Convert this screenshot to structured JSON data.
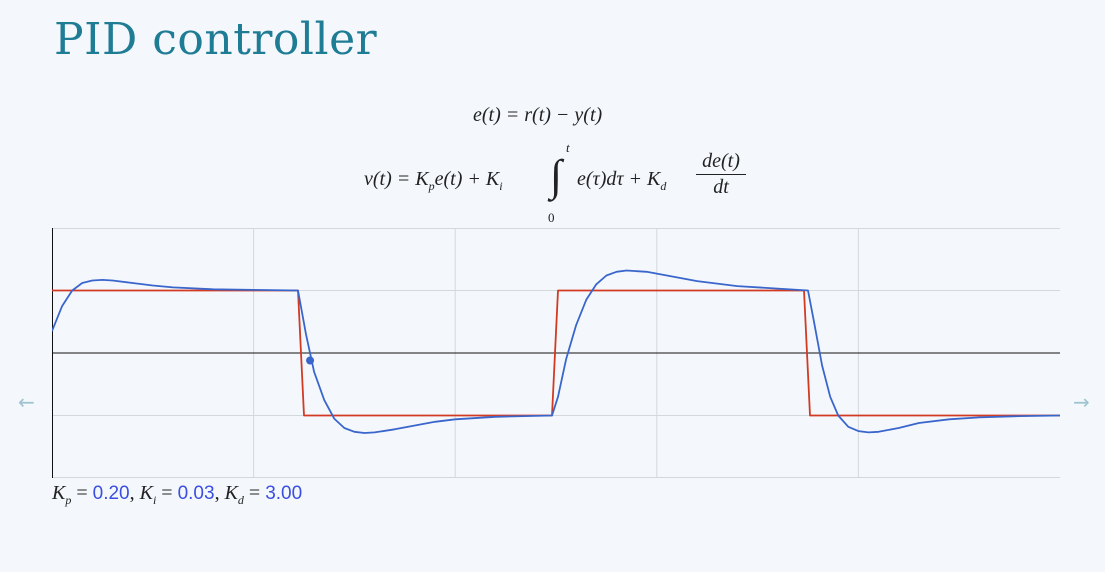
{
  "slide": {
    "title": "PID controller"
  },
  "equations": {
    "error": "e(t) = r(t) − y(t)",
    "control_lhs": "v(t) = K",
    "control_p_sub": "p",
    "control_mid1": "e(t) + K",
    "control_i_sub": "i",
    "integral_upper": "t",
    "integral_lower": "0",
    "integrand": "e(τ)dτ + K",
    "control_d_sub": "d",
    "deriv_num": "de(t)",
    "deriv_den": "dt"
  },
  "params": {
    "kp_label": "K",
    "kp_sub": "p",
    "kp_value": "0.20",
    "ki_label": "K",
    "ki_sub": "i",
    "ki_value": "0.03",
    "kd_label": "K",
    "kd_sub": "d",
    "kd_value": "3.00"
  },
  "nav": {
    "prev_glyph": "←",
    "next_glyph": "→"
  },
  "chart_data": {
    "type": "line",
    "title": "",
    "xlabel": "",
    "ylabel": "",
    "xlim": [
      0,
      5
    ],
    "ylim": [
      -2,
      2
    ],
    "grid": true,
    "series": [
      {
        "color": "#d23a22",
        "x": [
          0,
          1.22,
          1.25,
          2.48,
          2.51,
          3.73,
          3.76,
          5.0
        ],
        "values": [
          1,
          1,
          -1,
          -1,
          1,
          1,
          -1,
          -1
        ]
      },
      {
        "color": "#3a66cc",
        "x": [
          0,
          0.05,
          0.1,
          0.15,
          0.2,
          0.25,
          0.3,
          0.4,
          0.5,
          0.6,
          0.8,
          1.0,
          1.22,
          1.26,
          1.3,
          1.35,
          1.4,
          1.45,
          1.5,
          1.55,
          1.6,
          1.7,
          1.8,
          1.9,
          2.0,
          2.2,
          2.48,
          2.51,
          2.55,
          2.6,
          2.65,
          2.7,
          2.75,
          2.8,
          2.85,
          2.95,
          3.05,
          3.2,
          3.4,
          3.6,
          3.75,
          3.78,
          3.82,
          3.86,
          3.9,
          3.95,
          4.0,
          4.05,
          4.1,
          4.2,
          4.3,
          4.45,
          4.6,
          4.8,
          5.0
        ],
        "values": [
          0.35,
          0.75,
          1.0,
          1.12,
          1.16,
          1.17,
          1.16,
          1.12,
          1.08,
          1.05,
          1.02,
          1.01,
          1.0,
          0.3,
          -0.3,
          -0.75,
          -1.05,
          -1.2,
          -1.26,
          -1.28,
          -1.27,
          -1.22,
          -1.16,
          -1.1,
          -1.06,
          -1.02,
          -1.0,
          -0.7,
          -0.1,
          0.45,
          0.85,
          1.1,
          1.24,
          1.3,
          1.32,
          1.3,
          1.24,
          1.15,
          1.07,
          1.03,
          1.0,
          0.5,
          -0.2,
          -0.7,
          -1.0,
          -1.18,
          -1.25,
          -1.27,
          -1.26,
          -1.2,
          -1.12,
          -1.06,
          -1.03,
          -1.01,
          -1.0
        ]
      }
    ],
    "marker": {
      "x": 1.28,
      "y": -0.12,
      "color": "#3a66cc"
    }
  }
}
